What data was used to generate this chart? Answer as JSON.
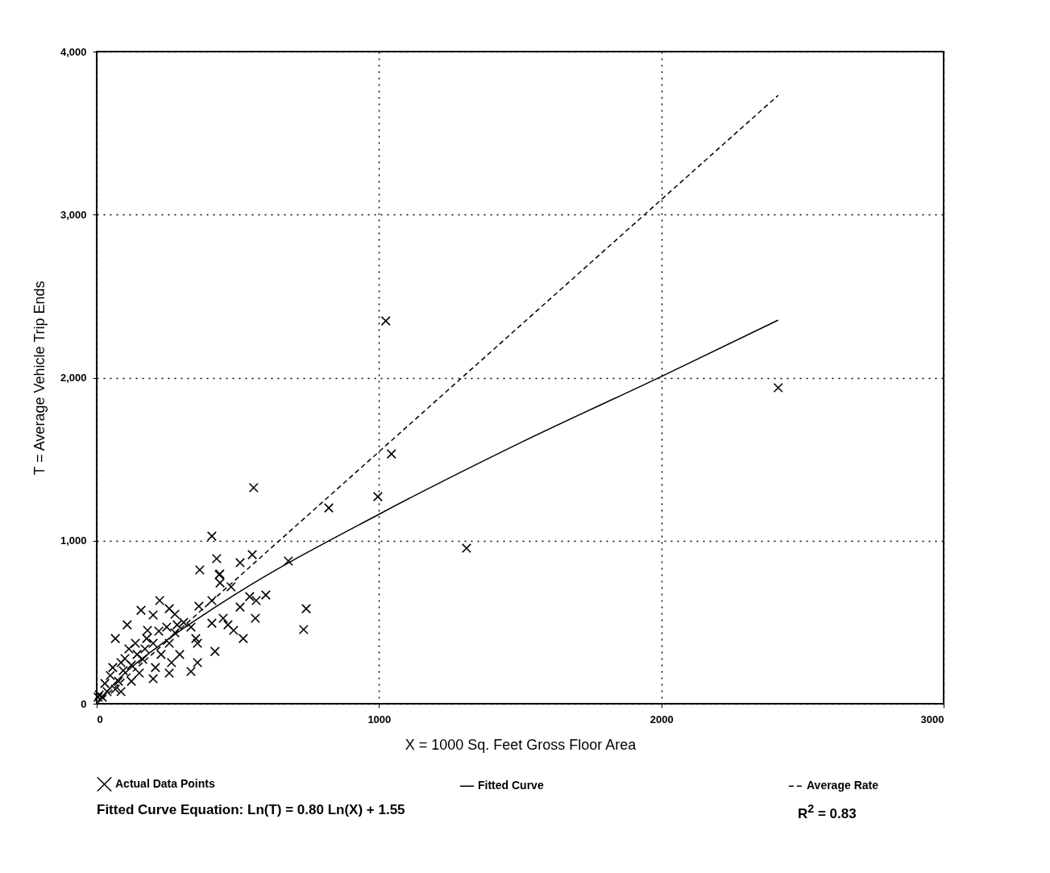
{
  "chart_data": {
    "type": "scatter",
    "xlabel": "X = 1000 Sq. Feet Gross Floor Area",
    "ylabel": "T = Average Vehicle Trip Ends",
    "xlim": [
      0,
      3000
    ],
    "xticks": [
      0,
      1000,
      2000,
      3000
    ],
    "ylim": [
      0,
      4000
    ],
    "yticks": [
      0,
      {
        "value": 1000,
        "label": "1,000"
      },
      {
        "value": 2000,
        "label": "2,000"
      },
      {
        "value": 3000,
        "label": "3,000"
      },
      {
        "value": 4000,
        "label": "4,000"
      }
    ],
    "grid": true,
    "legend": "bottom",
    "annotations": [
      "Fitted Curve Equation:  Ln(T) = 0.80 Ln(X) + 1.55",
      "R$^{2}$ = 0.83"
    ],
    "series": [
      {
        "name": "Actual Data Points",
        "marker": "cross",
        "color": "#000000",
        "x": [
          1024,
          1044,
          996,
          822,
          2414,
          1310,
          556,
          408,
          425,
          508,
          551,
          679,
          436,
          742,
          733,
          365,
          434,
          437,
          476,
          408,
          362,
          223,
          157,
          200,
          257,
          277,
          108,
          508,
          542,
          565,
          599,
          562,
          465,
          408,
          448,
          485,
          519,
          419,
          357,
          357,
          334,
          66,
          180,
          220,
          277,
          308,
          334,
          351,
          114,
          143,
          171,
          200,
          228,
          257,
          294,
          265,
          208,
          200,
          257,
          86,
          57,
          94,
          123,
          163,
          48,
          77,
          29,
          123,
          151,
          66,
          9,
          37,
          86,
          5,
          20,
          100,
          137,
          177,
          285,
          248
        ],
        "values": [
          2348,
          1532,
          1270,
          1201,
          1938,
          954,
          1325,
          1028,
          890,
          865,
          914,
          875,
          796,
          583,
          455,
          821,
          791,
          741,
          717,
          633,
          598,
          633,
          573,
          544,
          583,
          549,
          484,
          593,
          657,
          633,
          667,
          524,
          484,
          494,
          524,
          450,
          400,
          321,
          371,
          252,
          198,
          400,
          450,
          445,
          435,
          499,
          470,
          400,
          336,
          302,
          336,
          371,
          302,
          371,
          302,
          252,
          222,
          153,
          188,
          252,
          222,
          203,
          237,
          272,
          173,
          138,
          124,
          138,
          188,
          89,
          54,
          74,
          74,
          40,
          40,
          277,
          371,
          400,
          484,
          470
        ]
      },
      {
        "name": "Fitted Curve",
        "type": "line",
        "marker": "none",
        "line_style": "solid",
        "color": "#000000",
        "x": [
          5,
          100,
          250,
          500,
          1000,
          1500,
          2000,
          2414
        ],
        "values": [
          17,
          188,
          392,
          680,
          1162,
          1600,
          2007,
          2353
        ]
      },
      {
        "name": "Average Rate",
        "type": "line",
        "marker": "none",
        "line_style": "dashed",
        "color": "#000000",
        "x": [
          0,
          2414
        ],
        "values": [
          0,
          3732
        ]
      }
    ]
  }
}
